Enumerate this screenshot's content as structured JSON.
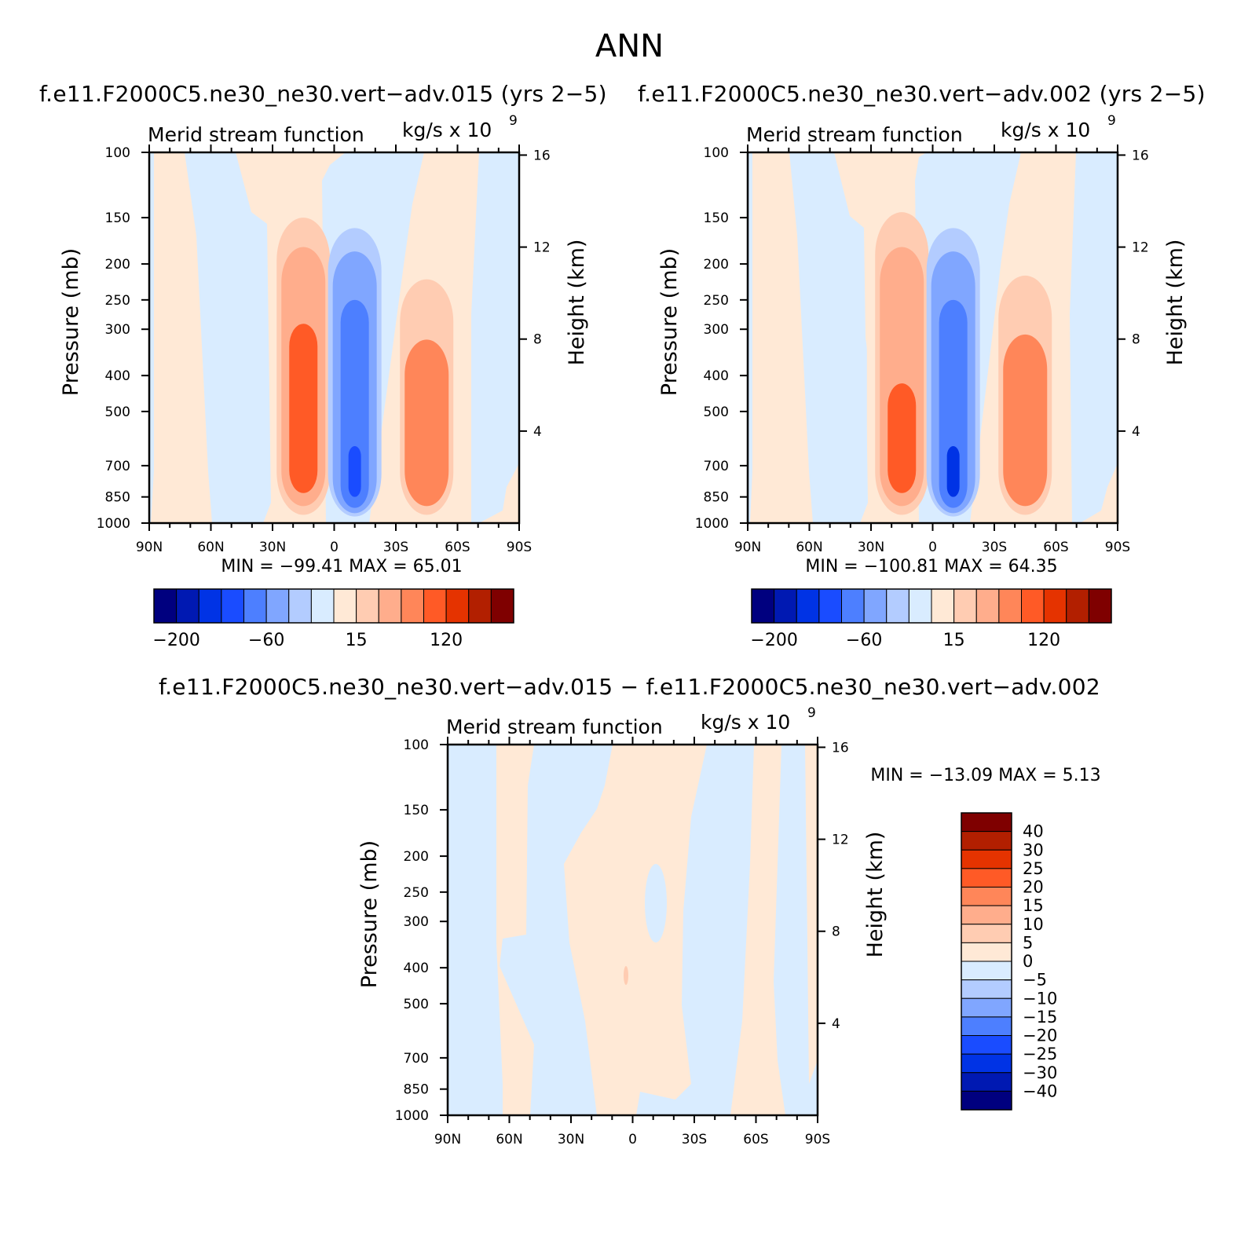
{
  "page": {
    "title": "ANN"
  },
  "panels": [
    {
      "run_title": "f.e11.F2000C5.ne30_ne30.vert−adv.015 (yrs 2−5)",
      "plot_label": "Merid stream function",
      "units_label": "kg/s x 10",
      "units_exponent": "9",
      "y_label": "Pressure (mb)",
      "y2_label": "Height (km)",
      "min_max_text": "MIN = −99.41   MAX =   65.01"
    },
    {
      "run_title": "f.e11.F2000C5.ne30_ne30.vert−adv.002 (yrs 2−5)",
      "plot_label": "Merid stream function",
      "units_label": "kg/s x 10",
      "units_exponent": "9",
      "y_label": "Pressure (mb)",
      "y2_label": "Height (km)",
      "min_max_text": "MIN = −100.81   MAX =   64.35"
    },
    {
      "run_title": "f.e11.F2000C5.ne30_ne30.vert−adv.015 − f.e11.F2000C5.ne30_ne30.vert−adv.002",
      "plot_label": "Merid stream function",
      "units_label": "kg/s x 10",
      "units_exponent": "9",
      "y_label": "Pressure (mb)",
      "y2_label": "Height (km)",
      "min_max_text": "MIN = −13.09   MAX =    5.13"
    }
  ],
  "chart_data": [
    {
      "type": "heatmap",
      "title": "Merid stream function",
      "xlabel": "",
      "ylabel": "Pressure (mb)",
      "y2label": "Height (km)",
      "x_ticks": [
        "90N",
        "60N",
        "30N",
        "0",
        "30S",
        "60S",
        "90S"
      ],
      "y_ticks": [
        "100",
        "150",
        "200",
        "250",
        "300",
        "400",
        "500",
        "700",
        "850",
        "1000"
      ],
      "y2_ticks": [
        "16",
        "12",
        "8",
        "4"
      ],
      "min": -99.41,
      "max": 65.01,
      "colorbar_labels": [
        "−200",
        "−60",
        "15",
        "120"
      ],
      "colors": [
        "#00007f",
        "#0019b2",
        "#0033e5",
        "#1a4cff",
        "#4d7fff",
        "#80a6ff",
        "#b3ccff",
        "#d9ecff",
        "#ffe9d6",
        "#ffccb2",
        "#ffad8c",
        "#ff8659",
        "#ff5a26",
        "#e53300",
        "#b21f00",
        "#7f0000"
      ],
      "features": [
        {
          "lat": 45,
          "pbot": 850,
          "ptop": 270,
          "value": -12
        },
        {
          "lat": 15,
          "pbot": 950,
          "ptop": 150,
          "value": 20
        },
        {
          "lat": 15,
          "pbot": 900,
          "ptop": 180,
          "value": 40
        },
        {
          "lat": 15,
          "pbot": 830,
          "ptop": 290,
          "value": 70
        },
        {
          "lat": -10,
          "pbot": 960,
          "ptop": 160,
          "value": -20
        },
        {
          "lat": -10,
          "pbot": 940,
          "ptop": 185,
          "value": -40
        },
        {
          "lat": -10,
          "pbot": 910,
          "ptop": 250,
          "value": -70
        },
        {
          "lat": -10,
          "pbot": 850,
          "ptop": 620,
          "value": -99
        },
        {
          "lat": -45,
          "pbot": 950,
          "ptop": 220,
          "value": 25
        },
        {
          "lat": -45,
          "pbot": 900,
          "ptop": 320,
          "value": 50
        }
      ]
    },
    {
      "type": "heatmap",
      "title": "Merid stream function",
      "xlabel": "",
      "ylabel": "Pressure (mb)",
      "y2label": "Height (km)",
      "x_ticks": [
        "90N",
        "60N",
        "30N",
        "0",
        "30S",
        "60S",
        "90S"
      ],
      "y_ticks": [
        "100",
        "150",
        "200",
        "250",
        "300",
        "400",
        "500",
        "700",
        "850",
        "1000"
      ],
      "y2_ticks": [
        "16",
        "12",
        "8",
        "4"
      ],
      "min": -100.81,
      "max": 64.35,
      "colorbar_labels": [
        "−200",
        "−60",
        "15",
        "120"
      ],
      "colors": [
        "#00007f",
        "#0019b2",
        "#0033e5",
        "#1a4cff",
        "#4d7fff",
        "#80a6ff",
        "#b3ccff",
        "#d9ecff",
        "#ffe9d6",
        "#ffccb2",
        "#ffad8c",
        "#ff8659",
        "#ff5a26",
        "#e53300",
        "#b21f00",
        "#7f0000"
      ],
      "features": [
        {
          "lat": 45,
          "pbot": 850,
          "ptop": 265,
          "value": -12
        },
        {
          "lat": 15,
          "pbot": 950,
          "ptop": 145,
          "value": 20
        },
        {
          "lat": 15,
          "pbot": 900,
          "ptop": 180,
          "value": 40
        },
        {
          "lat": 15,
          "pbot": 830,
          "ptop": 420,
          "value": 70
        },
        {
          "lat": -10,
          "pbot": 960,
          "ptop": 160,
          "value": -20
        },
        {
          "lat": -10,
          "pbot": 940,
          "ptop": 185,
          "value": -40
        },
        {
          "lat": -10,
          "pbot": 910,
          "ptop": 250,
          "value": -70
        },
        {
          "lat": -10,
          "pbot": 850,
          "ptop": 620,
          "value": -100
        },
        {
          "lat": -45,
          "pbot": 950,
          "ptop": 215,
          "value": 25
        },
        {
          "lat": -45,
          "pbot": 900,
          "ptop": 310,
          "value": 50
        }
      ]
    },
    {
      "type": "heatmap",
      "title": "Merid stream function",
      "xlabel": "",
      "ylabel": "Pressure (mb)",
      "y2label": "Height (km)",
      "x_ticks": [
        "90N",
        "60N",
        "30N",
        "0",
        "30S",
        "60S",
        "90S"
      ],
      "y_ticks": [
        "100",
        "150",
        "200",
        "250",
        "300",
        "400",
        "500",
        "700",
        "850",
        "1000"
      ],
      "y2_ticks": [
        "16",
        "12",
        "8",
        "4"
      ],
      "min": -13.09,
      "max": 5.13,
      "colorbar_labels": [
        "40",
        "30",
        "25",
        "20",
        "15",
        "10",
        "5",
        "0",
        "−5",
        "−10",
        "−15",
        "−20",
        "−25",
        "−30",
        "−40"
      ],
      "colors": [
        "#7f0000",
        "#b21f00",
        "#e53300",
        "#ff5a26",
        "#ff8659",
        "#ffad8c",
        "#ffccb2",
        "#ffe9d6",
        "#d9ecff",
        "#b3ccff",
        "#80a6ff",
        "#4d7fff",
        "#1a4cff",
        "#0033e5",
        "#0019b2",
        "#00007f"
      ],
      "features": []
    }
  ]
}
